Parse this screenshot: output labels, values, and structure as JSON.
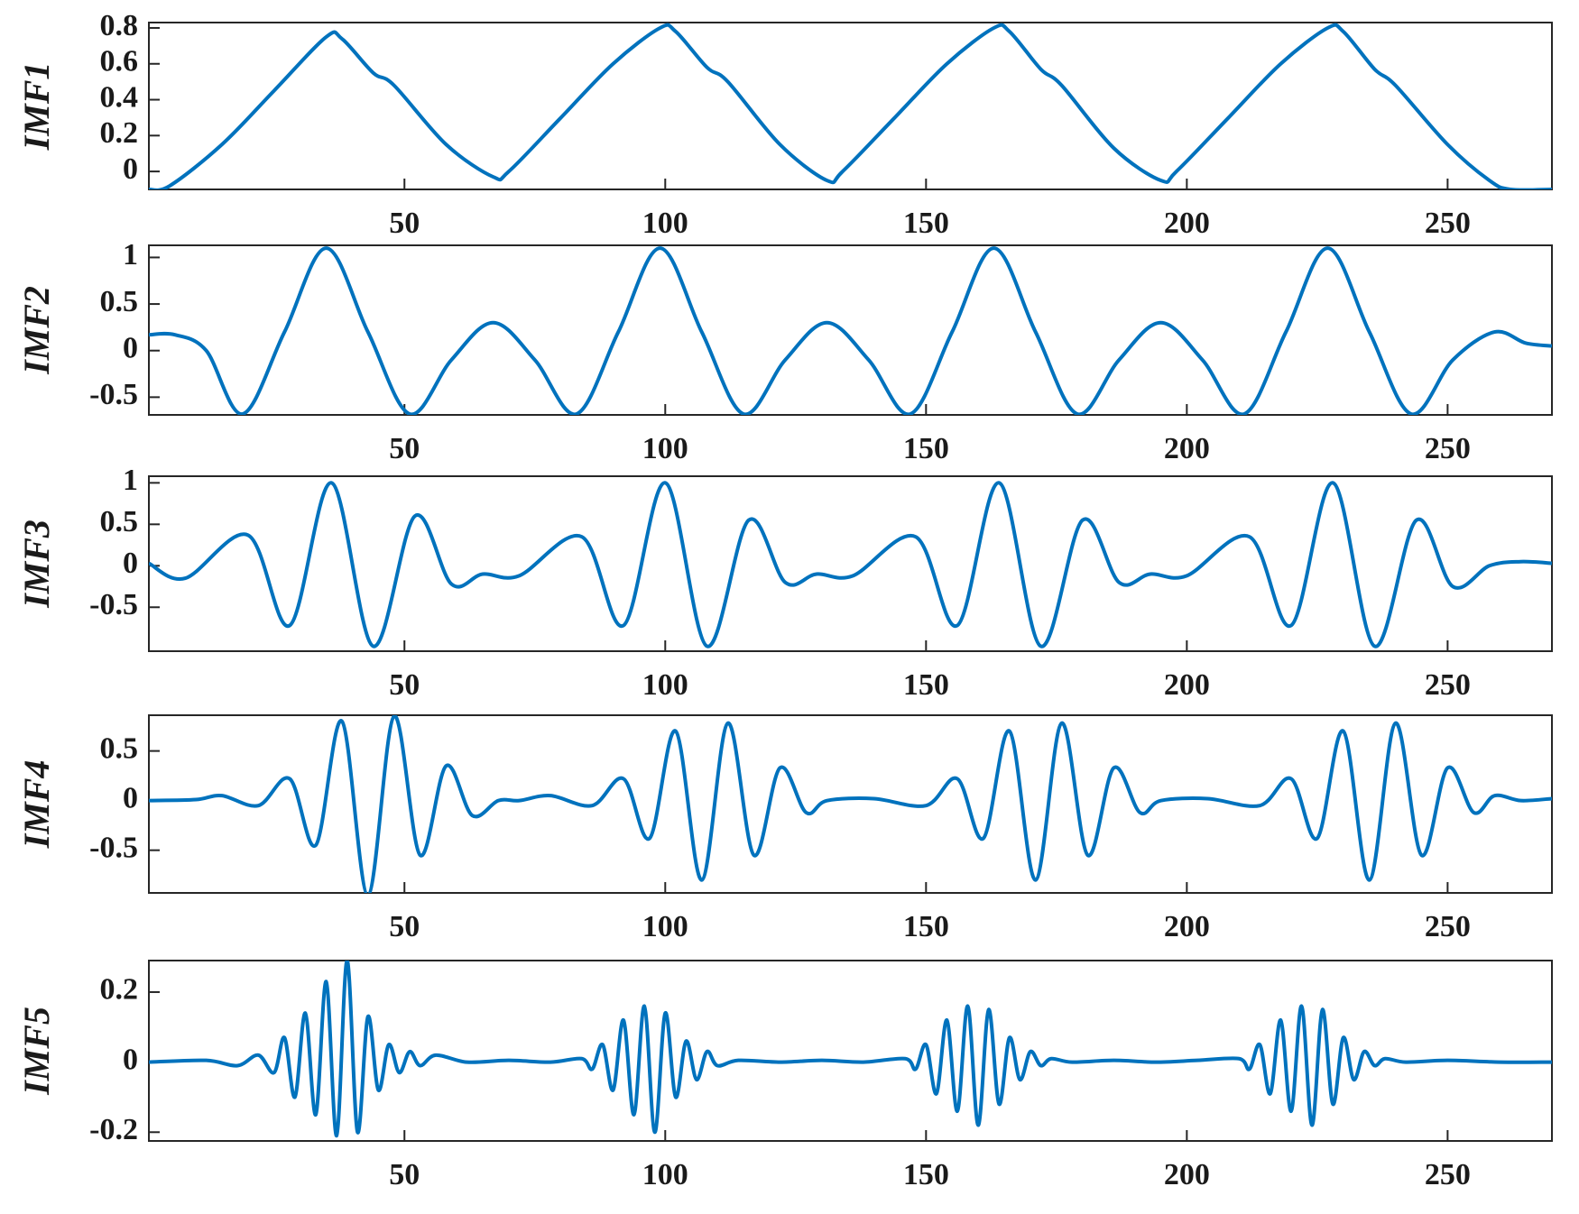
{
  "chart_data": [
    {
      "type": "line",
      "ylabel": "IMF1",
      "color": "#0072bd",
      "x": [
        1,
        5,
        15,
        25,
        35,
        38,
        44,
        48,
        58,
        67,
        70,
        80,
        90,
        99,
        102,
        108,
        112,
        122,
        131,
        134,
        144,
        154,
        163,
        166,
        172,
        176,
        186,
        195,
        198,
        208,
        218,
        227,
        230,
        236,
        240,
        250,
        258,
        262,
        270
      ],
      "values": [
        -0.1,
        -0.08,
        0.15,
        0.45,
        0.75,
        0.74,
        0.55,
        0.48,
        0.15,
        -0.03,
        0,
        0.3,
        0.6,
        0.8,
        0.78,
        0.58,
        0.5,
        0.15,
        -0.05,
        0,
        0.3,
        0.6,
        0.8,
        0.78,
        0.57,
        0.48,
        0.13,
        -0.05,
        0,
        0.3,
        0.6,
        0.8,
        0.78,
        0.57,
        0.48,
        0.15,
        -0.05,
        -0.1,
        -0.1
      ],
      "xlim": [
        1,
        270
      ],
      "xticks": [
        50,
        100,
        150,
        200,
        250
      ],
      "ylim": [
        -0.1,
        0.83
      ],
      "yticks": [
        0,
        0.2,
        0.4,
        0.6,
        0.8
      ]
    },
    {
      "type": "line",
      "ylabel": "IMF2",
      "color": "#0072bd",
      "x": [
        1,
        6,
        12,
        19,
        27,
        35,
        43,
        51,
        59,
        67,
        75,
        83,
        91,
        99,
        107,
        115,
        123,
        131,
        139,
        147,
        155,
        163,
        171,
        179,
        187,
        195,
        203,
        211,
        219,
        227,
        235,
        243,
        251,
        259,
        265,
        270
      ],
      "values": [
        0.17,
        0.17,
        0,
        -0.68,
        0.2,
        1.1,
        0.2,
        -0.68,
        -0.1,
        0.3,
        -0.1,
        -0.68,
        0.2,
        1.1,
        0.2,
        -0.68,
        -0.1,
        0.3,
        -0.1,
        -0.68,
        0.2,
        1.1,
        0.2,
        -0.68,
        -0.1,
        0.3,
        -0.1,
        -0.68,
        0.2,
        1.1,
        0.2,
        -0.68,
        -0.1,
        0.2,
        0.08,
        0.05
      ],
      "xlim": [
        1,
        270
      ],
      "xticks": [
        50,
        100,
        150,
        200,
        250
      ],
      "ylim": [
        -0.69,
        1.13
      ],
      "yticks": [
        -0.5,
        0,
        0.5,
        1
      ]
    },
    {
      "type": "line",
      "ylabel": "IMF3",
      "color": "#0072bd",
      "x": [
        1,
        8,
        20,
        28,
        36,
        44,
        52,
        59,
        65,
        72,
        84,
        92,
        100,
        108,
        116,
        123,
        129,
        136,
        148,
        156,
        164,
        172,
        180,
        187,
        193,
        200,
        212,
        220,
        228,
        236,
        244,
        251,
        258,
        264,
        270
      ],
      "values": [
        0.03,
        -0.15,
        0.37,
        -0.72,
        1,
        -0.97,
        0.6,
        -0.22,
        -0.1,
        -0.12,
        0.35,
        -0.72,
        1,
        -0.97,
        0.55,
        -0.2,
        -0.1,
        -0.12,
        0.35,
        -0.72,
        1,
        -0.97,
        0.55,
        -0.2,
        -0.1,
        -0.12,
        0.35,
        -0.72,
        1,
        -0.97,
        0.55,
        -0.25,
        0,
        0.05,
        0.03
      ],
      "xlim": [
        1,
        270
      ],
      "xticks": [
        50,
        100,
        150,
        200,
        250
      ],
      "ylim": [
        -1.03,
        1.08
      ],
      "yticks": [
        -0.5,
        0,
        0.5,
        1
      ]
    },
    {
      "type": "line",
      "ylabel": "IMF4",
      "color": "#0072bd",
      "x": [
        1,
        10,
        15,
        22,
        28,
        33,
        38,
        43,
        48,
        53,
        58,
        63,
        68,
        72,
        78,
        86,
        92,
        97,
        102,
        107,
        112,
        117,
        122,
        127,
        131,
        140,
        150,
        156,
        161,
        166,
        171,
        176,
        181,
        186,
        191,
        195,
        204,
        214,
        220,
        225,
        230,
        235,
        240,
        245,
        250,
        255,
        259,
        264,
        270
      ],
      "values": [
        0,
        0.01,
        0.05,
        -0.05,
        0.22,
        -0.45,
        0.8,
        -0.95,
        0.85,
        -0.55,
        0.35,
        -0.15,
        0,
        0,
        0.05,
        -0.05,
        0.22,
        -0.38,
        0.7,
        -0.8,
        0.78,
        -0.55,
        0.33,
        -0.12,
        0,
        0.02,
        -0.05,
        0.22,
        -0.38,
        0.7,
        -0.8,
        0.78,
        -0.55,
        0.33,
        -0.12,
        0,
        0.02,
        -0.05,
        0.22,
        -0.38,
        0.7,
        -0.8,
        0.78,
        -0.55,
        0.33,
        -0.12,
        0.05,
        0,
        0.02
      ],
      "xlim": [
        1,
        270
      ],
      "xticks": [
        50,
        100,
        150,
        200,
        250
      ],
      "ylim": [
        -0.93,
        0.86
      ],
      "yticks": [
        -0.5,
        0,
        0.5
      ]
    },
    {
      "type": "line",
      "ylabel": "IMF5",
      "color": "#0072bd",
      "x": [
        1,
        12,
        18,
        22,
        25,
        27,
        29,
        31,
        33,
        35,
        37,
        39,
        41,
        43,
        45,
        47,
        49,
        51,
        53,
        56,
        62,
        70,
        78,
        84,
        86,
        88,
        90,
        92,
        94,
        96,
        98,
        100,
        102,
        104,
        106,
        108,
        110,
        114,
        122,
        130,
        138,
        146,
        148,
        150,
        152,
        154,
        156,
        158,
        160,
        162,
        164,
        166,
        168,
        170,
        172,
        174,
        178,
        186,
        194,
        202,
        210,
        212,
        214,
        216,
        218,
        220,
        222,
        224,
        226,
        228,
        230,
        232,
        234,
        236,
        238,
        242,
        250,
        260,
        270
      ],
      "values": [
        0,
        0.005,
        -0.01,
        0.02,
        -0.03,
        0.07,
        -0.1,
        0.14,
        -0.15,
        0.23,
        -0.21,
        0.29,
        -0.2,
        0.13,
        -0.08,
        0.05,
        -0.03,
        0.03,
        -0.01,
        0.02,
        0,
        0.005,
        0,
        0.01,
        -0.02,
        0.05,
        -0.08,
        0.12,
        -0.15,
        0.16,
        -0.2,
        0.14,
        -0.1,
        0.06,
        -0.05,
        0.03,
        -0.01,
        0.005,
        0,
        0.005,
        0,
        0.01,
        -0.02,
        0.05,
        -0.09,
        0.12,
        -0.14,
        0.16,
        -0.18,
        0.15,
        -0.12,
        0.07,
        -0.05,
        0.03,
        -0.01,
        0.01,
        0,
        0.005,
        0,
        0.005,
        0.01,
        -0.02,
        0.05,
        -0.09,
        0.12,
        -0.14,
        0.16,
        -0.18,
        0.15,
        -0.12,
        0.07,
        -0.05,
        0.03,
        -0.01,
        0.01,
        0,
        0.005,
        0,
        0
      ],
      "xlim": [
        1,
        270
      ],
      "xticks": [
        50,
        100,
        150,
        200,
        250
      ],
      "ylim": [
        -0.225,
        0.29
      ],
      "yticks": [
        -0.2,
        0,
        0.2
      ]
    }
  ]
}
